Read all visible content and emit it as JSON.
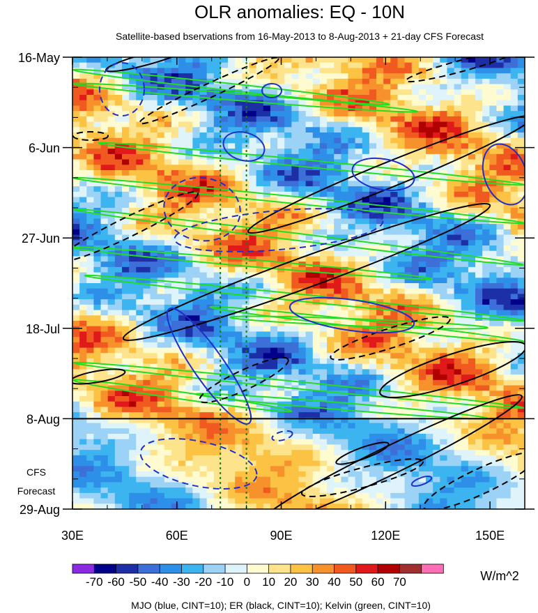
{
  "chart_data": {
    "type": "heatmap",
    "title": "OLR anomalies: EQ - 10N",
    "subtitle": "Satellite-based bservations from 16-May-2013 to 8-Aug-2013 + 21-day CFS Forecast",
    "x_axis": {
      "range": [
        30,
        160
      ],
      "ticks": [
        30,
        60,
        90,
        120,
        150
      ],
      "tick_labels": [
        "30E",
        "60E",
        "90E",
        "120E",
        "150E"
      ]
    },
    "y_axis": {
      "range_days": [
        0,
        105
      ],
      "ticks_days": [
        0,
        21,
        42,
        63,
        84,
        105
      ],
      "tick_labels": [
        "16-May",
        "6-Jun",
        "27-Jun",
        "18-Jul",
        "8-Aug",
        "29-Aug"
      ]
    },
    "observation_end_day": 84,
    "forecast_label": [
      "CFS",
      "Forecast"
    ],
    "reference_longitudes": [
      72.5,
      80
    ],
    "colorbar": {
      "levels": [
        -70,
        -60,
        -50,
        -40,
        -30,
        -20,
        -10,
        0,
        10,
        20,
        30,
        40,
        50,
        60,
        70
      ],
      "labels": [
        "-70",
        "-60",
        "-50",
        "-40",
        "-30",
        "-20",
        "-10",
        "0",
        "10",
        "20",
        "30",
        "40",
        "50",
        "60",
        "70"
      ],
      "colors": [
        "#8a2be2",
        "#00008b",
        "#1c2fa6",
        "#3c6fd8",
        "#2e8fe8",
        "#3cb4f0",
        "#9bd2f5",
        "#dff3fb",
        "#fffbd0",
        "#fde48c",
        "#fbc244",
        "#f7912c",
        "#f05a20",
        "#e01a1a",
        "#b00000",
        "#a03030",
        "#ff6eb4"
      ],
      "units": "W/m^2"
    },
    "contours": {
      "description": "MJO (blue, CINT=10); ER (black, CINT=10); Kelvin (green, CINT=10)",
      "series": [
        {
          "name": "MJO",
          "color": "#1f2fc8"
        },
        {
          "name": "ER",
          "color": "#000000"
        },
        {
          "name": "Kelvin",
          "color": "#22dd22"
        }
      ]
    }
  }
}
